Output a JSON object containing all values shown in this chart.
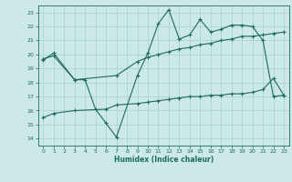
{
  "xlabel": "Humidex (Indice chaleur)",
  "background_color": "#cce8e8",
  "grid_color": "#aad4d4",
  "line_color": "#1e6b5e",
  "xlim": [
    -0.5,
    23.5
  ],
  "ylim": [
    13.5,
    23.5
  ],
  "yticks": [
    14,
    15,
    16,
    17,
    18,
    19,
    20,
    21,
    22,
    23
  ],
  "xticks": [
    0,
    1,
    2,
    3,
    4,
    5,
    6,
    7,
    8,
    9,
    10,
    11,
    12,
    13,
    14,
    15,
    16,
    17,
    18,
    19,
    20,
    21,
    22,
    23
  ],
  "line1_x": [
    0,
    1,
    3,
    4,
    5,
    6,
    7,
    9,
    10,
    11,
    12,
    13,
    14,
    15,
    16,
    17,
    18,
    19,
    20,
    21,
    22,
    23
  ],
  "line1_y": [
    19.6,
    20.1,
    18.2,
    18.2,
    16.1,
    15.1,
    14.1,
    18.5,
    20.1,
    22.2,
    23.2,
    21.1,
    21.4,
    22.5,
    21.6,
    21.8,
    22.1,
    22.1,
    22.0,
    21.0,
    17.0,
    17.1
  ],
  "line2_x": [
    0,
    1,
    3,
    7,
    9,
    10,
    11,
    12,
    13,
    14,
    15,
    16,
    17,
    18,
    19,
    20,
    21,
    22,
    23
  ],
  "line2_y": [
    19.7,
    19.9,
    18.2,
    18.5,
    19.5,
    19.8,
    20.0,
    20.2,
    20.4,
    20.5,
    20.7,
    20.8,
    21.0,
    21.1,
    21.3,
    21.3,
    21.4,
    21.5,
    21.6
  ],
  "line3_x": [
    0,
    1,
    3,
    6,
    7,
    9,
    10,
    11,
    12,
    13,
    14,
    15,
    16,
    17,
    18,
    19,
    20,
    21,
    22,
    23
  ],
  "line3_y": [
    15.5,
    15.8,
    16.0,
    16.1,
    16.4,
    16.5,
    16.6,
    16.7,
    16.8,
    16.9,
    17.0,
    17.0,
    17.1,
    17.1,
    17.2,
    17.2,
    17.3,
    17.5,
    18.3,
    17.1
  ]
}
